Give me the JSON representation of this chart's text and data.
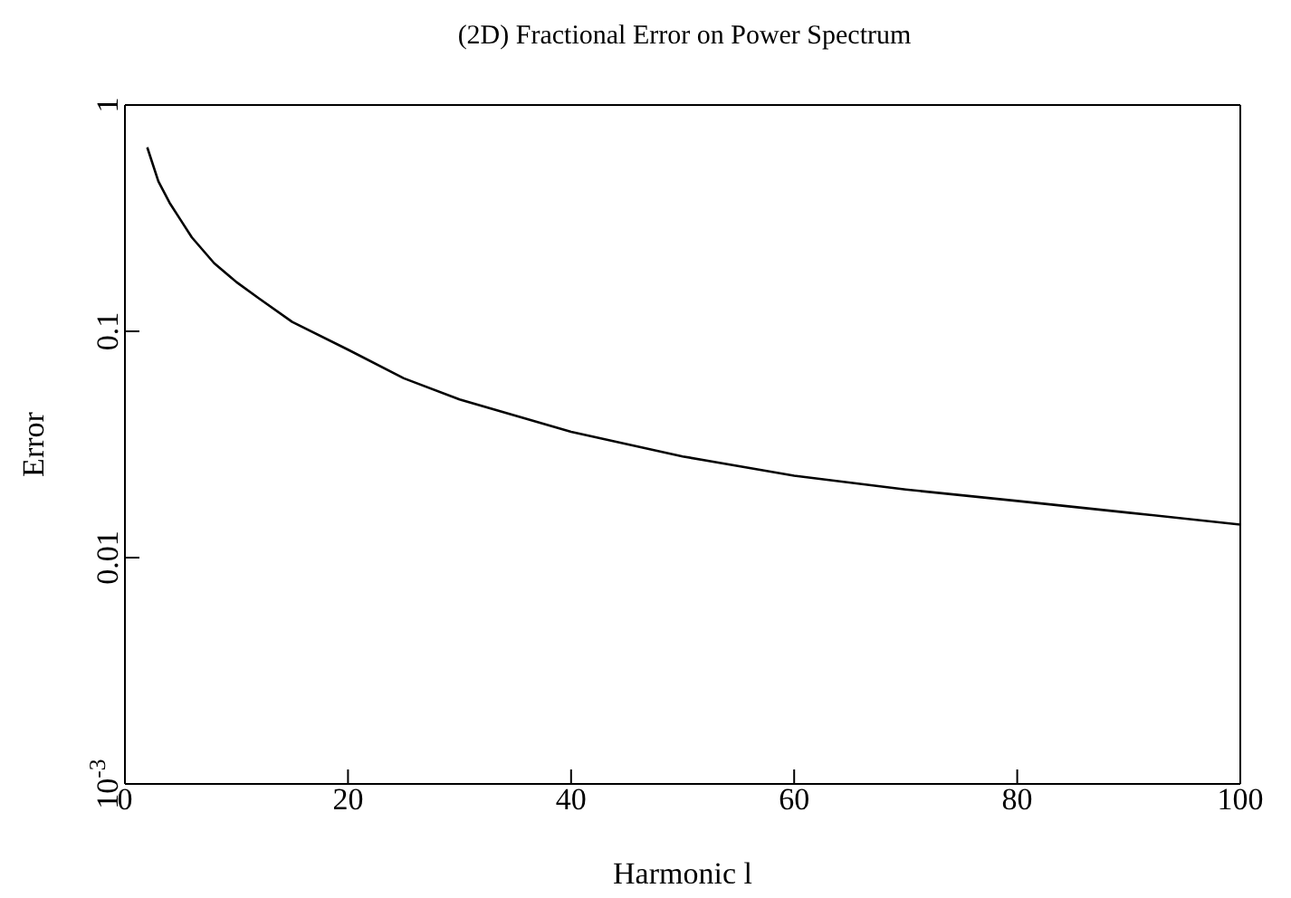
{
  "chart_data": {
    "type": "line",
    "title": "(2D) Fractional Error on Power Spectrum",
    "xlabel": "Harmonic l",
    "ylabel": "Error",
    "x": [
      2,
      3,
      4,
      5,
      6,
      8,
      10,
      12,
      15,
      20,
      25,
      30,
      40,
      50,
      60,
      70,
      80,
      90,
      100
    ],
    "series": [
      {
        "color": "#000000",
        "values": [
          0.65,
          0.46,
          0.37,
          0.31,
          0.26,
          0.2,
          0.165,
          0.14,
          0.11,
          0.083,
          0.062,
          0.05,
          0.036,
          0.028,
          0.023,
          0.02,
          0.0178,
          0.0158,
          0.014
        ]
      }
    ],
    "xlim": [
      0,
      100
    ],
    "xticks": [
      0,
      20,
      40,
      60,
      80,
      100
    ],
    "ylim": [
      0.001,
      1
    ],
    "yticks": [
      {
        "value": 0.001,
        "label": "10$^{-3}$"
      },
      0.01,
      0.1,
      1
    ],
    "log": "y",
    "grid": false,
    "legend": false,
    "marker": "none",
    "line_style": "solid"
  }
}
